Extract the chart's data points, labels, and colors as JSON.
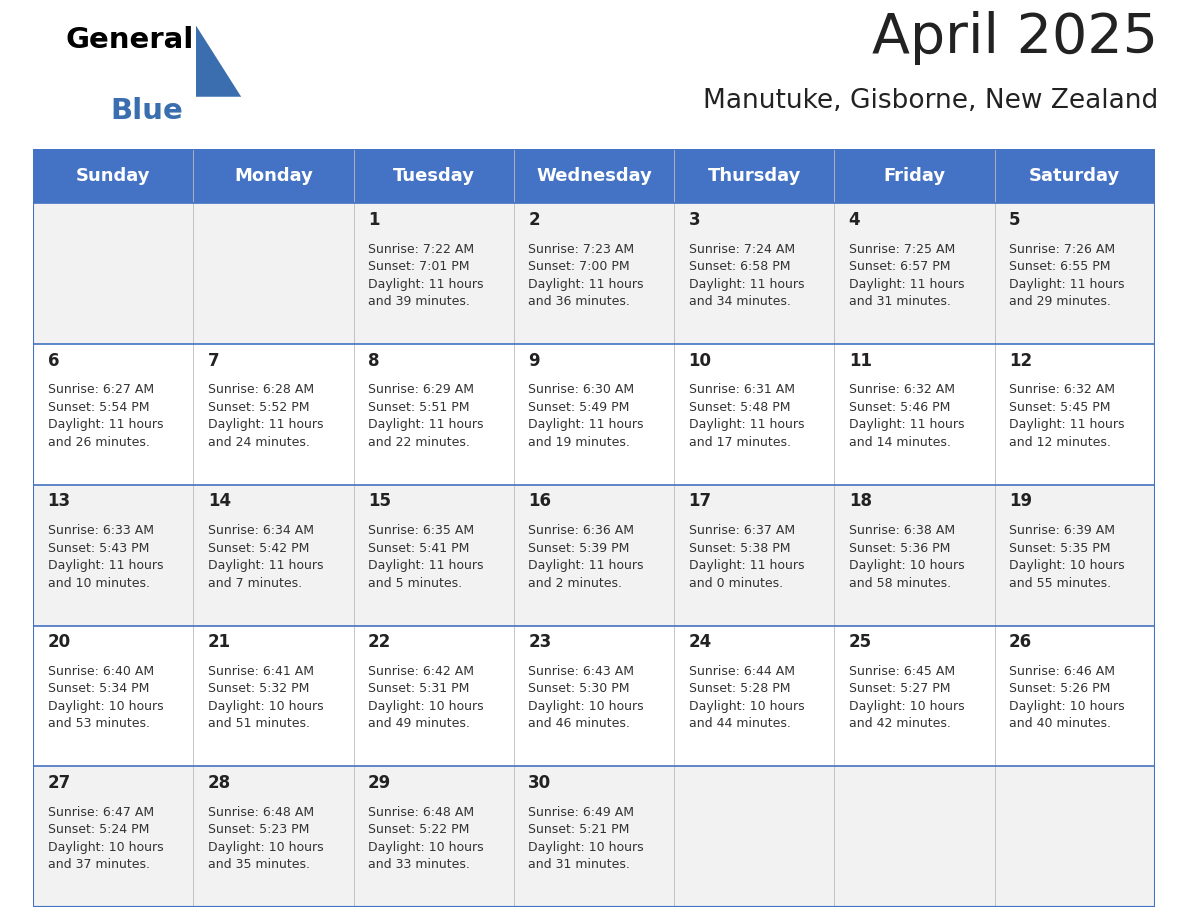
{
  "title": "April 2025",
  "subtitle": "Manutuke, Gisborne, New Zealand",
  "header_color": "#4472C4",
  "header_text_color": "#FFFFFF",
  "background_color": "#FFFFFF",
  "row_colors": [
    "#F2F2F2",
    "#FFFFFF",
    "#F2F2F2",
    "#FFFFFF",
    "#F2F2F2"
  ],
  "border_color": "#4472C4",
  "days_of_week": [
    "Sunday",
    "Monday",
    "Tuesday",
    "Wednesday",
    "Thursday",
    "Friday",
    "Saturday"
  ],
  "weeks": [
    [
      {
        "day": "",
        "info": ""
      },
      {
        "day": "",
        "info": ""
      },
      {
        "day": "1",
        "info": "Sunrise: 7:22 AM\nSunset: 7:01 PM\nDaylight: 11 hours\nand 39 minutes."
      },
      {
        "day": "2",
        "info": "Sunrise: 7:23 AM\nSunset: 7:00 PM\nDaylight: 11 hours\nand 36 minutes."
      },
      {
        "day": "3",
        "info": "Sunrise: 7:24 AM\nSunset: 6:58 PM\nDaylight: 11 hours\nand 34 minutes."
      },
      {
        "day": "4",
        "info": "Sunrise: 7:25 AM\nSunset: 6:57 PM\nDaylight: 11 hours\nand 31 minutes."
      },
      {
        "day": "5",
        "info": "Sunrise: 7:26 AM\nSunset: 6:55 PM\nDaylight: 11 hours\nand 29 minutes."
      }
    ],
    [
      {
        "day": "6",
        "info": "Sunrise: 6:27 AM\nSunset: 5:54 PM\nDaylight: 11 hours\nand 26 minutes."
      },
      {
        "day": "7",
        "info": "Sunrise: 6:28 AM\nSunset: 5:52 PM\nDaylight: 11 hours\nand 24 minutes."
      },
      {
        "day": "8",
        "info": "Sunrise: 6:29 AM\nSunset: 5:51 PM\nDaylight: 11 hours\nand 22 minutes."
      },
      {
        "day": "9",
        "info": "Sunrise: 6:30 AM\nSunset: 5:49 PM\nDaylight: 11 hours\nand 19 minutes."
      },
      {
        "day": "10",
        "info": "Sunrise: 6:31 AM\nSunset: 5:48 PM\nDaylight: 11 hours\nand 17 minutes."
      },
      {
        "day": "11",
        "info": "Sunrise: 6:32 AM\nSunset: 5:46 PM\nDaylight: 11 hours\nand 14 minutes."
      },
      {
        "day": "12",
        "info": "Sunrise: 6:32 AM\nSunset: 5:45 PM\nDaylight: 11 hours\nand 12 minutes."
      }
    ],
    [
      {
        "day": "13",
        "info": "Sunrise: 6:33 AM\nSunset: 5:43 PM\nDaylight: 11 hours\nand 10 minutes."
      },
      {
        "day": "14",
        "info": "Sunrise: 6:34 AM\nSunset: 5:42 PM\nDaylight: 11 hours\nand 7 minutes."
      },
      {
        "day": "15",
        "info": "Sunrise: 6:35 AM\nSunset: 5:41 PM\nDaylight: 11 hours\nand 5 minutes."
      },
      {
        "day": "16",
        "info": "Sunrise: 6:36 AM\nSunset: 5:39 PM\nDaylight: 11 hours\nand 2 minutes."
      },
      {
        "day": "17",
        "info": "Sunrise: 6:37 AM\nSunset: 5:38 PM\nDaylight: 11 hours\nand 0 minutes."
      },
      {
        "day": "18",
        "info": "Sunrise: 6:38 AM\nSunset: 5:36 PM\nDaylight: 10 hours\nand 58 minutes."
      },
      {
        "day": "19",
        "info": "Sunrise: 6:39 AM\nSunset: 5:35 PM\nDaylight: 10 hours\nand 55 minutes."
      }
    ],
    [
      {
        "day": "20",
        "info": "Sunrise: 6:40 AM\nSunset: 5:34 PM\nDaylight: 10 hours\nand 53 minutes."
      },
      {
        "day": "21",
        "info": "Sunrise: 6:41 AM\nSunset: 5:32 PM\nDaylight: 10 hours\nand 51 minutes."
      },
      {
        "day": "22",
        "info": "Sunrise: 6:42 AM\nSunset: 5:31 PM\nDaylight: 10 hours\nand 49 minutes."
      },
      {
        "day": "23",
        "info": "Sunrise: 6:43 AM\nSunset: 5:30 PM\nDaylight: 10 hours\nand 46 minutes."
      },
      {
        "day": "24",
        "info": "Sunrise: 6:44 AM\nSunset: 5:28 PM\nDaylight: 10 hours\nand 44 minutes."
      },
      {
        "day": "25",
        "info": "Sunrise: 6:45 AM\nSunset: 5:27 PM\nDaylight: 10 hours\nand 42 minutes."
      },
      {
        "day": "26",
        "info": "Sunrise: 6:46 AM\nSunset: 5:26 PM\nDaylight: 10 hours\nand 40 minutes."
      }
    ],
    [
      {
        "day": "27",
        "info": "Sunrise: 6:47 AM\nSunset: 5:24 PM\nDaylight: 10 hours\nand 37 minutes."
      },
      {
        "day": "28",
        "info": "Sunrise: 6:48 AM\nSunset: 5:23 PM\nDaylight: 10 hours\nand 35 minutes."
      },
      {
        "day": "29",
        "info": "Sunrise: 6:48 AM\nSunset: 5:22 PM\nDaylight: 10 hours\nand 33 minutes."
      },
      {
        "day": "30",
        "info": "Sunrise: 6:49 AM\nSunset: 5:21 PM\nDaylight: 10 hours\nand 31 minutes."
      },
      {
        "day": "",
        "info": ""
      },
      {
        "day": "",
        "info": ""
      },
      {
        "day": "",
        "info": ""
      }
    ]
  ],
  "logo_text_general": "General",
  "logo_text_blue": "Blue",
  "logo_triangle_color": "#3A6EAF",
  "text_color": "#222222",
  "info_text_color": "#333333",
  "title_fontsize": 40,
  "subtitle_fontsize": 19,
  "day_number_fontsize": 12,
  "info_fontsize": 9,
  "header_fontsize": 13
}
